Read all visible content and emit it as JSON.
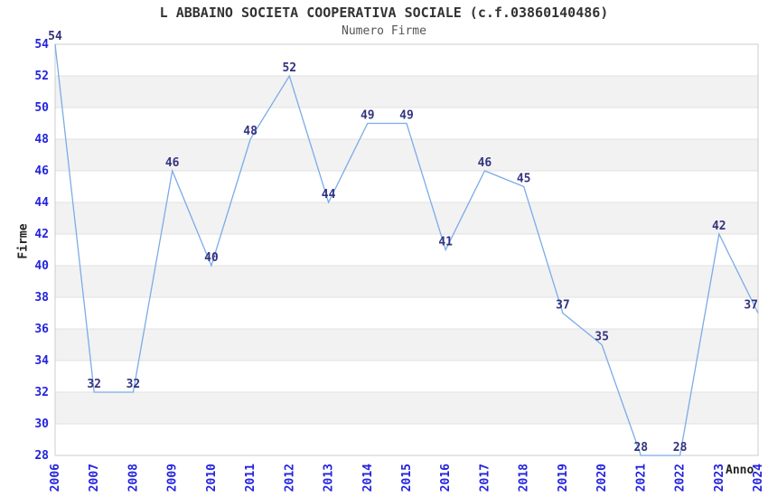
{
  "chart_data": {
    "type": "line",
    "title": "L ABBAINO SOCIETA COOPERATIVA SOCIALE (c.f.03860140486)",
    "subtitle": "Numero Firme",
    "xlabel": "Anno",
    "ylabel": "Firme",
    "x": [
      "2006",
      "2007",
      "2008",
      "2009",
      "2010",
      "2011",
      "2012",
      "2013",
      "2014",
      "2015",
      "2016",
      "2017",
      "2018",
      "2019",
      "2020",
      "2021",
      "2022",
      "2023",
      "2024"
    ],
    "values": [
      54,
      32,
      32,
      46,
      40,
      48,
      52,
      44,
      49,
      49,
      41,
      46,
      45,
      37,
      35,
      28,
      28,
      42,
      37
    ],
    "ylim": [
      28,
      54
    ],
    "ytick_step": 2,
    "grid": true,
    "alternating_row_bands": true,
    "data_labels": true,
    "legend_position": "none"
  },
  "colors": {
    "line": "#7aace8",
    "axis_tick_label": "#2323dd",
    "data_label": "#333380",
    "title": "#333333",
    "subtitle": "#555555",
    "axis_title": "#222222",
    "band_fill": "#f2f2f2",
    "gridline": "#e2e2e2",
    "plot_border": "#cccccc",
    "background": "#ffffff"
  }
}
